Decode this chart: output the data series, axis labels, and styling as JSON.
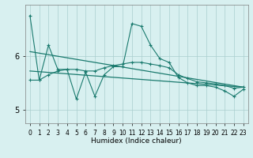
{
  "xlabel": "Humidex (Indice chaleur)",
  "x": [
    0,
    1,
    2,
    3,
    4,
    5,
    6,
    7,
    8,
    9,
    10,
    11,
    12,
    13,
    14,
    15,
    16,
    17,
    18,
    19,
    20,
    21,
    22,
    23
  ],
  "jagged_y": [
    6.75,
    5.55,
    6.2,
    5.75,
    5.75,
    5.2,
    5.7,
    5.25,
    5.65,
    5.8,
    5.8,
    6.6,
    6.55,
    6.2,
    5.95,
    5.88,
    5.6,
    5.5,
    5.45,
    5.45,
    5.42,
    5.35,
    5.25,
    5.38
  ],
  "smooth_y": [
    5.55,
    5.55,
    5.65,
    5.72,
    5.75,
    5.75,
    5.72,
    5.72,
    5.78,
    5.82,
    5.85,
    5.88,
    5.88,
    5.85,
    5.82,
    5.78,
    5.65,
    5.58,
    5.52,
    5.5,
    5.48,
    5.45,
    5.4,
    5.42
  ],
  "trend1_x": [
    0,
    23
  ],
  "trend1_y": [
    6.08,
    5.42
  ],
  "trend2_x": [
    0,
    23
  ],
  "trend2_y": [
    5.72,
    5.42
  ],
  "bg_color": "#d8f0f0",
  "line_color": "#1a7a6e",
  "grid_color": "#aacece",
  "yticks": [
    5.0,
    6.0
  ],
  "ylim": [
    4.75,
    6.95
  ],
  "xlim": [
    -0.5,
    23.5
  ],
  "xlabel_fontsize": 6.5,
  "tick_fontsize": 5.5,
  "ytick_fontsize": 7
}
